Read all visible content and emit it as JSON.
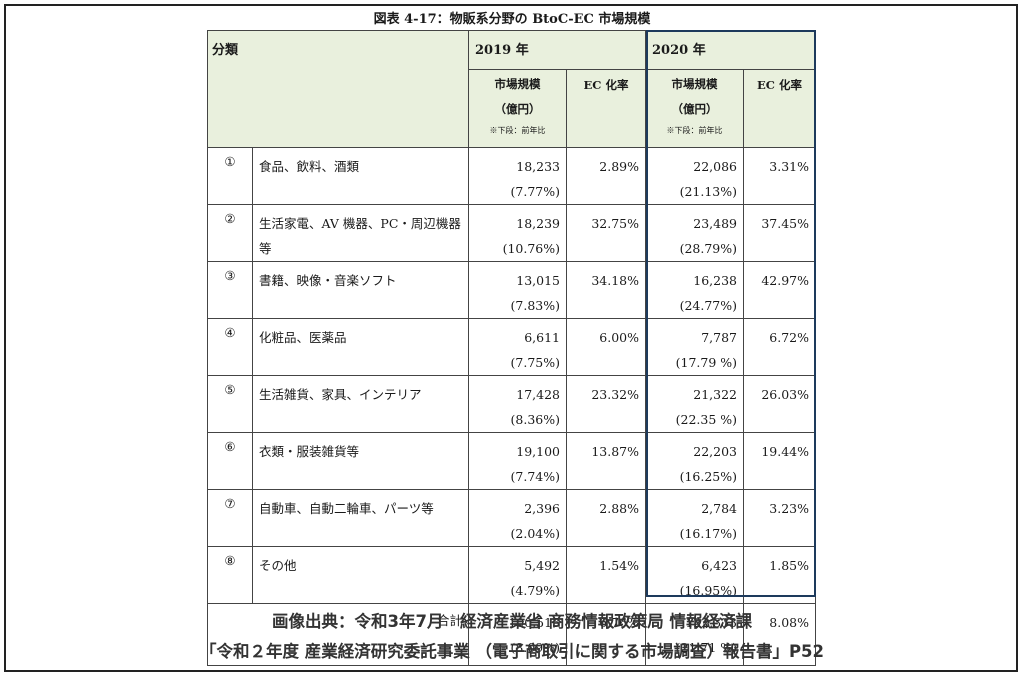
{
  "title": "図表 4-17：物販系分野の BtoC-EC 市場規模",
  "header": {
    "category": "分類",
    "year1": "2019 年",
    "year2": "2020 年",
    "market_size_line1": "市場規模",
    "market_size_line2": "（億円）",
    "market_note": "※下段：前年比",
    "ec_rate": "EC 化率"
  },
  "rows": [
    {
      "num": "①",
      "label": "食品、飲料、酒類",
      "v2019": "18,233",
      "g2019": "(7.77%)",
      "ec2019": "2.89%",
      "v2020": "22,086",
      "g2020": "(21.13%)",
      "ec2020": "3.31%"
    },
    {
      "num": "②",
      "label": "生活家電、AV 機器、PC・周辺機器等",
      "v2019": "18,239",
      "g2019": "(10.76%)",
      "ec2019": "32.75%",
      "v2020": "23,489",
      "g2020": "(28.79%)",
      "ec2020": "37.45%"
    },
    {
      "num": "③",
      "label": "書籍、映像・音楽ソフト",
      "v2019": "13,015",
      "g2019": "(7.83%)",
      "ec2019": "34.18%",
      "v2020": "16,238",
      "g2020": "(24.77%)",
      "ec2020": "42.97%"
    },
    {
      "num": "④",
      "label": "化粧品、医薬品",
      "v2019": "6,611",
      "g2019": "(7.75%)",
      "ec2019": "6.00%",
      "v2020": "7,787",
      "g2020": "(17.79 %)",
      "ec2020": "6.72%"
    },
    {
      "num": "⑤",
      "label": "生活雑貨、家具、インテリア",
      "v2019": "17,428",
      "g2019": "(8.36%)",
      "ec2019": "23.32%",
      "v2020": "21,322",
      "g2020": "(22.35 %)",
      "ec2020": "26.03%"
    },
    {
      "num": "⑥",
      "label": "衣類・服装雑貨等",
      "v2019": "19,100",
      "g2019": "(7.74%)",
      "ec2019": "13.87%",
      "v2020": "22,203",
      "g2020": "(16.25%)",
      "ec2020": "19.44%"
    },
    {
      "num": "⑦",
      "label": "自動車、自動二輪車、パーツ等",
      "v2019": "2,396",
      "g2019": "(2.04%)",
      "ec2019": "2.88%",
      "v2020": "2,784",
      "g2020": "(16.17%)",
      "ec2020": "3.23%"
    },
    {
      "num": "⑧",
      "label": "その他",
      "v2019": "5,492",
      "g2019": "(4.79%)",
      "ec2019": "1.54%",
      "v2020": "6,423",
      "g2020": "(16.95%)",
      "ec2020": "1.85%"
    }
  ],
  "total": {
    "label": "合計",
    "v2019": "100,515",
    "g2019": "(8.09%)",
    "ec2019": "6.76%",
    "v2020": "122,333",
    "g2020": "(21.71 %)",
    "ec2020": "8.08%"
  },
  "caption": {
    "line1": "画像出典：令和3年7月　経済産業省 商務情報政策局 情報経済課",
    "line2": "「令和２年度 産業経済研究委託事業 （電子商取引に関する市場調査）報告書」P52"
  },
  "colors": {
    "header_bg": "#e9f0dd",
    "highlight_border": "#1d3a5c"
  }
}
